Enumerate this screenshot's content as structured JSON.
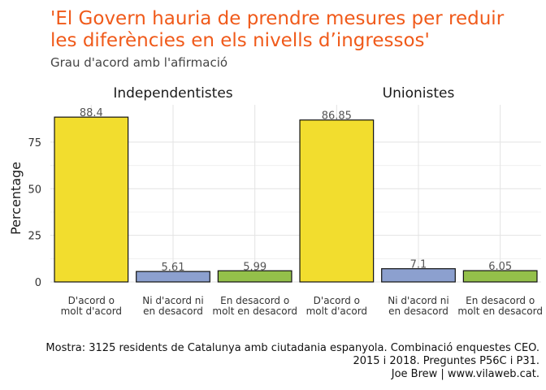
{
  "colors": {
    "title": "#f05a1a",
    "bar_agree": "#f2dd2e",
    "bar_neutral": "#8ca0cf",
    "bar_disagree": "#94c04a"
  },
  "chart_data": {
    "type": "bar",
    "title_lines": [
      "'El Govern hauria de prendre mesures per reduir",
      "les diferències en els nivells d’ingressos'"
    ],
    "subtitle": "Grau d'acord amb l'afirmació",
    "ylabel": "Percentage",
    "ylim": [
      0,
      95
    ],
    "yticks": [
      0,
      25,
      50,
      75
    ],
    "grid": true,
    "categories": [
      {
        "lines": [
          "D'acord o",
          "molt d'acord"
        ],
        "color_key": "bar_agree"
      },
      {
        "lines": [
          "Ni d'acord ni",
          "en desacord"
        ],
        "color_key": "bar_neutral"
      },
      {
        "lines": [
          "En desacord o",
          "molt en desacord"
        ],
        "color_key": "bar_disagree"
      }
    ],
    "facets": [
      {
        "name": "Independentistes",
        "values": [
          88.4,
          5.61,
          5.99
        ],
        "labels": [
          "88.4",
          "5.61",
          "5.99"
        ]
      },
      {
        "name": "Unionistes",
        "values": [
          86.85,
          7.1,
          6.05
        ],
        "labels": [
          "86.85",
          "7.1",
          "6.05"
        ]
      }
    ],
    "caption_lines": [
      "Mostra: 3125 residents de Catalunya amb ciutadania espanyola. Combinació enquestes CEO.",
      "2015 i 2018. Preguntes P56C i P31.",
      "Joe Brew | www.vilaweb.cat."
    ]
  }
}
